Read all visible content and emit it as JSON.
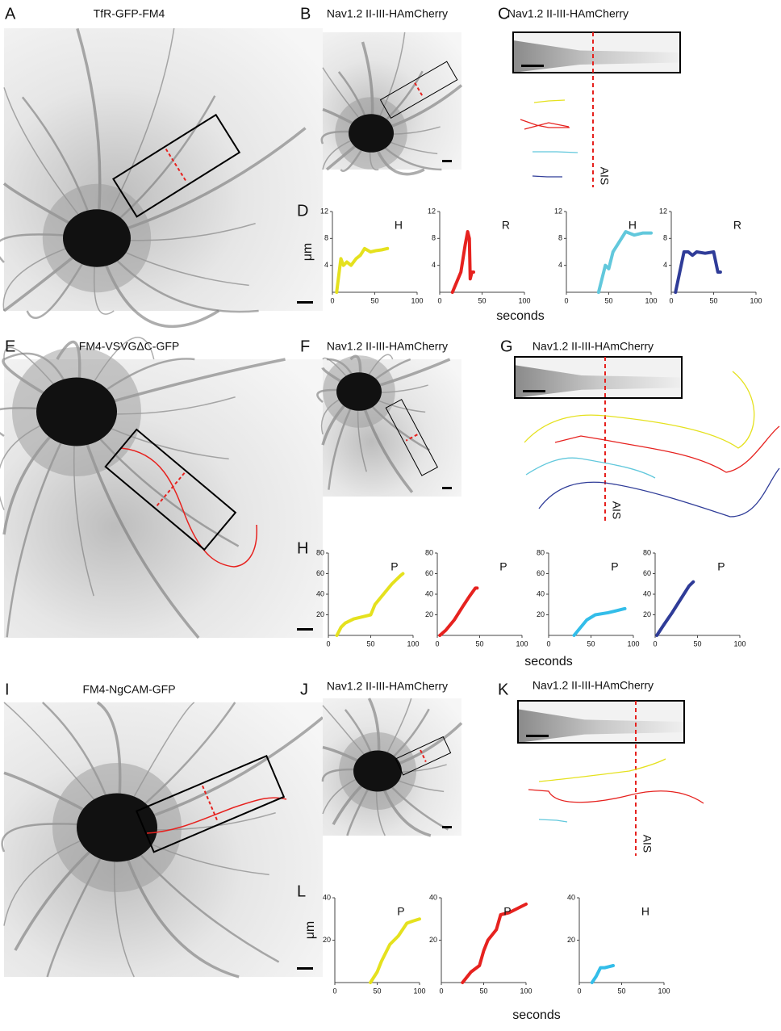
{
  "panels": [
    {
      "letter": "A",
      "title": "TfR-GFP-FM4"
    },
    {
      "letter": "B",
      "title": "Nav1.2 II-III-HAmCherry"
    },
    {
      "letter": "C",
      "title": "Nav1.2 II-III-HAmCherry",
      "ais": "AIS"
    },
    {
      "letter": "E",
      "title": "FM4-VSVGΔC-GFP"
    },
    {
      "letter": "F",
      "title": "Nav1.2 II-III-HAmCherry"
    },
    {
      "letter": "G",
      "title": "Nav1.2 II-III-HAmCherry",
      "ais": "AIS"
    },
    {
      "letter": "I",
      "title": "FM4-NgCAM-GFP"
    },
    {
      "letter": "J",
      "title": "Nav1.2 II-III-HAmCherry"
    },
    {
      "letter": "K",
      "title": "Nav1.2 II-III-HAmCherry",
      "ais": "AIS"
    }
  ],
  "plot_panels": [
    {
      "letter": "D",
      "y_label": "μm",
      "x_label": "seconds",
      "charts": [
        {
          "type": "line",
          "label": "H",
          "xlim": [
            0,
            100
          ],
          "xticks": [
            0,
            50,
            100
          ],
          "ylim": [
            0,
            12
          ],
          "yticks": [
            4,
            8,
            12
          ],
          "x": [
            5,
            8,
            10,
            13,
            17,
            22,
            28,
            33,
            38,
            45,
            52,
            58,
            65
          ],
          "series": [
            {
              "color": "#e5e11e",
              "values": [
                0,
                3,
                5,
                4,
                4.5,
                4,
                5,
                5.5,
                6.5,
                6,
                6.2,
                6.3,
                6.5
              ]
            }
          ]
        },
        {
          "type": "line",
          "label": "R",
          "xlim": [
            0,
            100
          ],
          "xticks": [
            0,
            50,
            100
          ],
          "ylim": [
            0,
            12
          ],
          "yticks": [
            4,
            8,
            12
          ],
          "x": [
            15,
            20,
            25,
            30,
            33,
            35,
            36,
            38,
            40
          ],
          "series": [
            {
              "color": "#e6221f",
              "values": [
                0,
                1.5,
                3,
                7,
                9,
                8,
                2,
                3,
                3
              ]
            }
          ]
        },
        {
          "type": "line",
          "label": "H",
          "xlim": [
            0,
            100
          ],
          "xticks": [
            0,
            50,
            100
          ],
          "ylim": [
            0,
            12
          ],
          "yticks": [
            4,
            8,
            12
          ],
          "x": [
            38,
            42,
            46,
            50,
            55,
            60,
            65,
            70,
            80,
            90,
            100
          ],
          "series": [
            {
              "color": "#62c8dc",
              "values": [
                0,
                2,
                4,
                3.5,
                6,
                7,
                8,
                9,
                8.5,
                8.8,
                8.8
              ]
            }
          ]
        },
        {
          "type": "line",
          "label": "R",
          "xlim": [
            0,
            100
          ],
          "xticks": [
            0,
            50,
            100
          ],
          "ylim": [
            0,
            12
          ],
          "yticks": [
            4,
            8,
            12
          ],
          "x": [
            5,
            10,
            15,
            20,
            25,
            30,
            40,
            50,
            55,
            58
          ],
          "series": [
            {
              "color": "#2f3c98",
              "values": [
                0,
                3,
                6,
                6,
                5.5,
                6,
                5.8,
                6,
                3,
                3
              ]
            }
          ]
        }
      ]
    },
    {
      "letter": "H",
      "x_label": "seconds",
      "charts": [
        {
          "type": "line",
          "label": "P",
          "xlim": [
            0,
            100
          ],
          "xticks": [
            0,
            50,
            100
          ],
          "ylim": [
            0,
            80
          ],
          "yticks": [
            20,
            40,
            60,
            80
          ],
          "x": [
            10,
            15,
            20,
            30,
            40,
            50,
            55,
            65,
            75,
            85,
            88
          ],
          "series": [
            {
              "color": "#e5e11e",
              "values": [
                0,
                8,
                12,
                16,
                18,
                20,
                30,
                40,
                50,
                58,
                60
              ]
            }
          ]
        },
        {
          "type": "line",
          "label": "P",
          "xlim": [
            0,
            100
          ],
          "xticks": [
            0,
            50,
            100
          ],
          "ylim": [
            0,
            80
          ],
          "yticks": [
            20,
            40,
            60,
            80
          ],
          "x": [
            3,
            10,
            20,
            30,
            38,
            45,
            47
          ],
          "series": [
            {
              "color": "#e6221f",
              "values": [
                0,
                5,
                15,
                28,
                38,
                46,
                46
              ]
            }
          ]
        },
        {
          "type": "line",
          "label": "P",
          "xlim": [
            0,
            100
          ],
          "xticks": [
            0,
            50,
            100
          ],
          "ylim": [
            0,
            80
          ],
          "yticks": [
            20,
            40,
            60,
            80
          ],
          "x": [
            30,
            35,
            45,
            55,
            70,
            90
          ],
          "series": [
            {
              "color": "#33bde9",
              "values": [
                0,
                5,
                15,
                20,
                22,
                26
              ]
            }
          ]
        },
        {
          "type": "line",
          "label": "P",
          "xlim": [
            0,
            100
          ],
          "xticks": [
            0,
            50,
            100
          ],
          "ylim": [
            0,
            80
          ],
          "yticks": [
            20,
            40,
            60,
            80
          ],
          "x": [
            2,
            10,
            20,
            30,
            40,
            45
          ],
          "series": [
            {
              "color": "#2f3c98",
              "values": [
                0,
                10,
                22,
                35,
                48,
                52
              ]
            }
          ]
        }
      ]
    },
    {
      "letter": "L",
      "y_label": "μm",
      "x_label": "seconds",
      "charts": [
        {
          "type": "line",
          "label": "P",
          "xlim": [
            0,
            100
          ],
          "xticks": [
            0,
            50,
            100
          ],
          "ylim": [
            0,
            40
          ],
          "yticks": [
            20,
            40
          ],
          "x": [
            42,
            50,
            55,
            60,
            65,
            70,
            75,
            80,
            85,
            92,
            100
          ],
          "series": [
            {
              "color": "#e5e11e",
              "values": [
                0,
                5,
                10,
                14,
                18,
                20,
                22,
                25,
                28,
                29,
                30
              ]
            }
          ]
        },
        {
          "type": "line",
          "label": "P",
          "xlim": [
            0,
            100
          ],
          "xticks": [
            0,
            50,
            100
          ],
          "ylim": [
            0,
            40
          ],
          "yticks": [
            20,
            40
          ],
          "x": [
            25,
            35,
            45,
            50,
            55,
            65,
            70,
            80,
            90,
            100
          ],
          "series": [
            {
              "color": "#e6221f",
              "values": [
                0,
                5,
                8,
                15,
                20,
                25,
                32,
                33,
                35,
                37
              ]
            }
          ]
        },
        {
          "type": "line",
          "label": "H",
          "xlim": [
            0,
            100
          ],
          "xticks": [
            0,
            50,
            100
          ],
          "ylim": [
            0,
            40
          ],
          "yticks": [
            20,
            40
          ],
          "x": [
            15,
            20,
            25,
            30,
            35,
            40
          ],
          "series": [
            {
              "color": "#33bde9",
              "values": [
                0,
                3,
                7,
                7,
                7.5,
                8
              ]
            }
          ]
        }
      ]
    }
  ]
}
